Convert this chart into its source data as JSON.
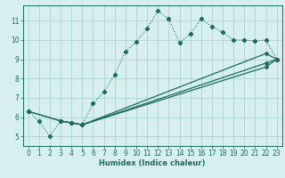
{
  "xlabel": "Humidex (Indice chaleur)",
  "background_color": "#d8eff0",
  "grid_color": "#b2d8da",
  "line_color": "#1a6b5a",
  "xlim": [
    -0.5,
    23.5
  ],
  "ylim": [
    4.5,
    11.8
  ],
  "xticks": [
    0,
    1,
    2,
    3,
    4,
    5,
    6,
    7,
    8,
    9,
    10,
    11,
    12,
    13,
    14,
    15,
    16,
    17,
    18,
    19,
    20,
    21,
    22,
    23
  ],
  "yticks": [
    5,
    6,
    7,
    8,
    9,
    10,
    11
  ],
  "line1_x": [
    0,
    1,
    2,
    3,
    4,
    5,
    6,
    7,
    8,
    9,
    10,
    11,
    12,
    13,
    14,
    15,
    16,
    17,
    18,
    19,
    20,
    21,
    22,
    23
  ],
  "line1_y": [
    6.3,
    5.8,
    5.0,
    5.8,
    5.7,
    5.6,
    6.7,
    7.3,
    8.2,
    9.4,
    9.9,
    10.6,
    11.5,
    11.1,
    9.85,
    10.3,
    11.1,
    10.7,
    10.4,
    10.0,
    10.0,
    9.95,
    10.0,
    9.0
  ],
  "line2_x": [
    0,
    3,
    4,
    5,
    22,
    23
  ],
  "line2_y": [
    6.3,
    5.8,
    5.7,
    5.6,
    9.3,
    9.0
  ],
  "line3_x": [
    0,
    3,
    4,
    5,
    22,
    23
  ],
  "line3_y": [
    6.3,
    5.8,
    5.7,
    5.6,
    8.8,
    9.0
  ],
  "line4_x": [
    3,
    4,
    5,
    22,
    23
  ],
  "line4_y": [
    5.8,
    5.7,
    5.6,
    8.6,
    9.0
  ]
}
